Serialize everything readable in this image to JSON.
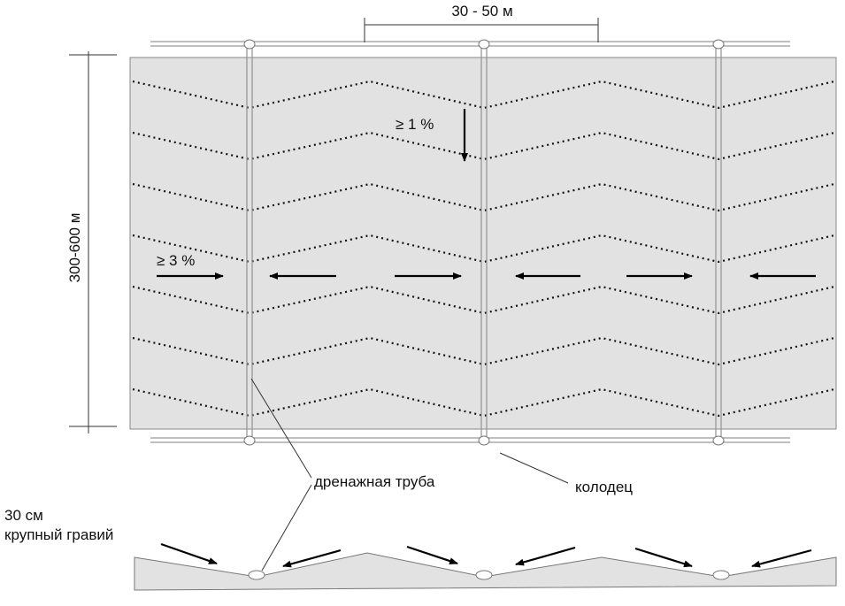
{
  "dimensions": {
    "width_label": "30 - 50 м",
    "length_label": "300-600 м"
  },
  "slopes": {
    "longitudinal": "≥ 1 %",
    "transverse": "≥ 3 %"
  },
  "labels": {
    "drain_pipe": "дренажная труба",
    "well": "колодец"
  },
  "gravel": {
    "thickness": "30 см",
    "material": "крупный гравий"
  }
}
